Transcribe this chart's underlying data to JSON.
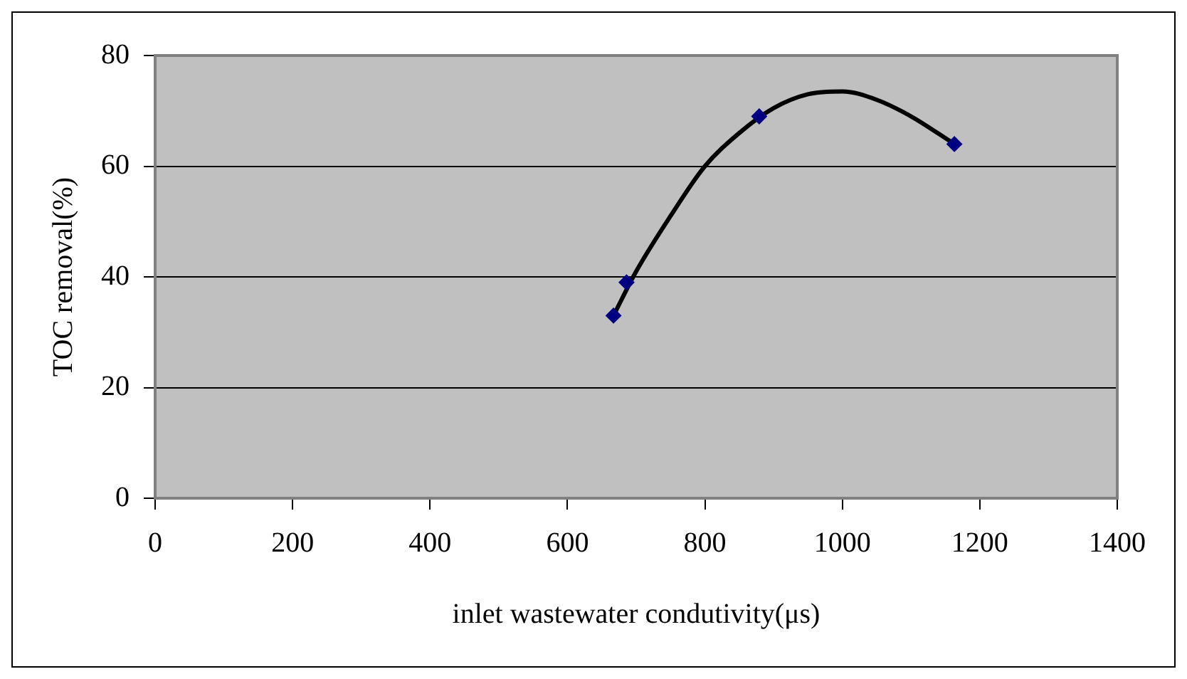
{
  "chart_data": {
    "type": "scatter",
    "xlabel": "inlet wastewater condutivity(μs)",
    "ylabel": "TOC removal(%)",
    "xlim": [
      0,
      1400
    ],
    "xticks": [
      0,
      200,
      400,
      600,
      800,
      1000,
      1200,
      1400
    ],
    "ylim": [
      0,
      80
    ],
    "yticks": [
      0,
      20,
      40,
      60,
      80
    ],
    "grid": "y",
    "legend": false,
    "marker": "diamond",
    "series": [
      {
        "color": "#000080",
        "x": [
          667,
          686,
          879,
          1163
        ],
        "values": [
          33,
          39,
          69,
          64
        ]
      },
      {
        "type": "line",
        "color": "#000000",
        "marker": "none",
        "x": [
          667,
          700,
          750,
          800,
          850,
          900,
          950,
          1000,
          1050,
          1100,
          1163
        ],
        "values": [
          33,
          41,
          51,
          60,
          66,
          70.5,
          73,
          73.5,
          72,
          69,
          64
        ]
      }
    ]
  }
}
